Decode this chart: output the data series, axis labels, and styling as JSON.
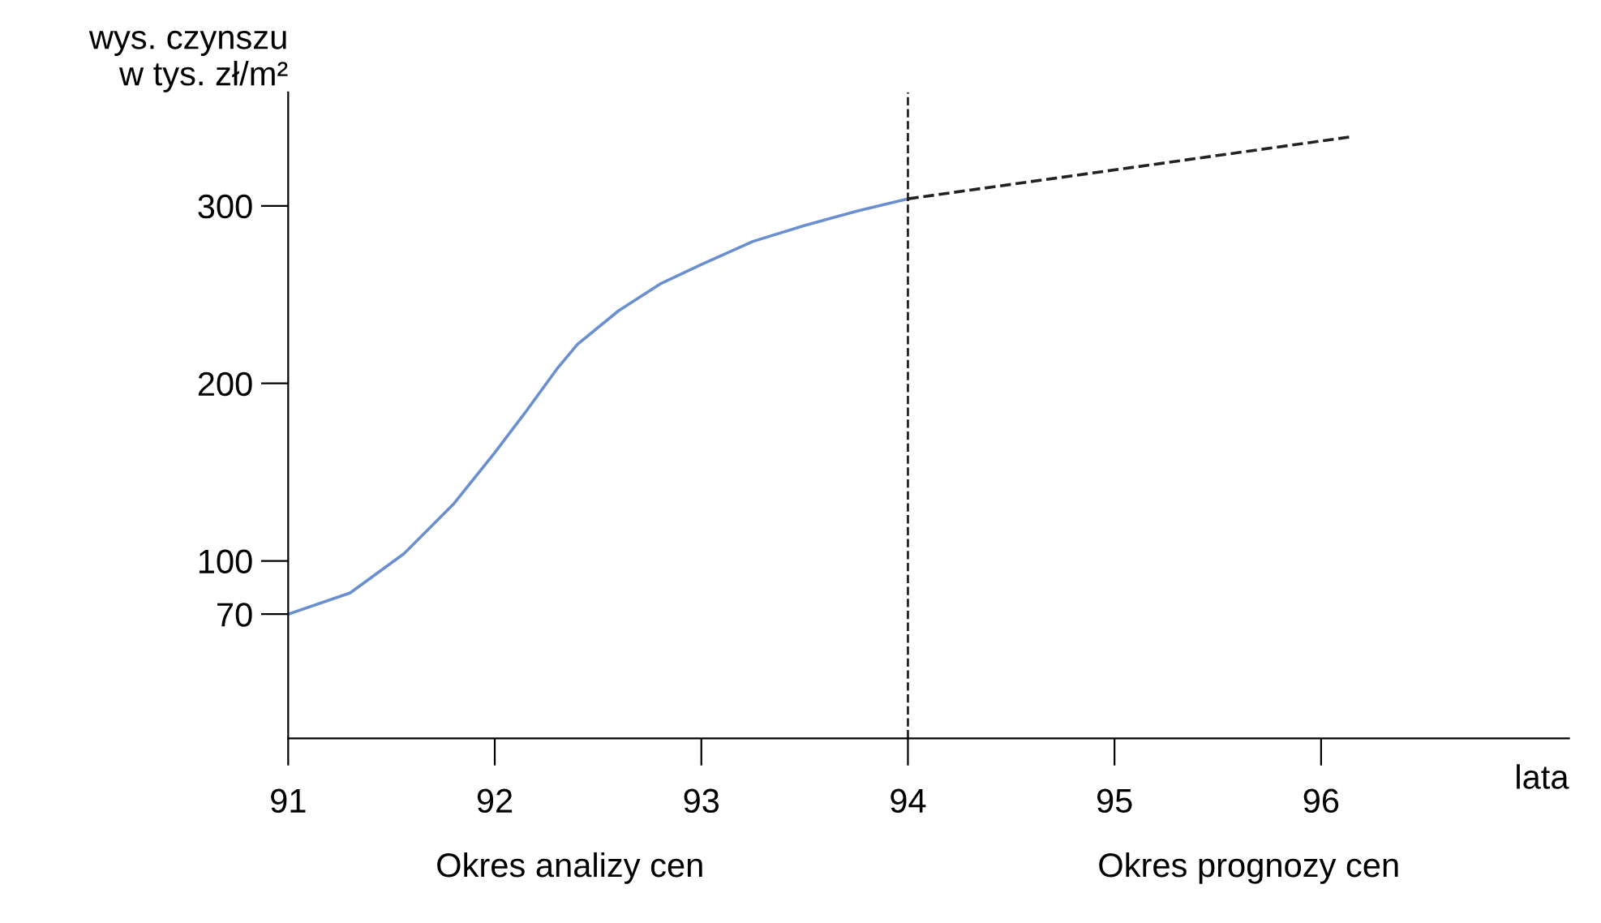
{
  "chart_data": {
    "type": "line",
    "ylabel": "wys. czynszu\nw tys. zł/m²",
    "xlabel": "lata",
    "xlim": [
      91,
      97.2
    ],
    "ylim": [
      0,
      364
    ],
    "xticks": [
      91,
      92,
      93,
      94,
      95,
      96
    ],
    "yticks": [
      70,
      100,
      200,
      300
    ],
    "series": [
      {
        "color": "#6a8fd0",
        "line_style": "solid",
        "x": [
          91,
          91.3,
          91.56,
          91.8,
          92.0,
          92.15,
          92.3,
          92.4,
          92.6,
          92.8,
          93.0,
          93.25,
          93.5,
          93.75,
          94.0
        ],
        "values": [
          70,
          82,
          104,
          132,
          161,
          184,
          208,
          222,
          241,
          256,
          267,
          280,
          289,
          297,
          304
        ]
      },
      {
        "color": "#222222",
        "line_style": "dashed",
        "x": [
          94.0,
          96.15
        ],
        "values": [
          304,
          339
        ]
      }
    ],
    "ref_lines": [
      {
        "axis": "x",
        "value": 94,
        "color": "#222222",
        "line_style": "dashed"
      }
    ],
    "grid": false,
    "legend": false,
    "marker": "none",
    "annotations": [
      "Okres analizy cen",
      "Okres prognozy cen"
    ]
  }
}
